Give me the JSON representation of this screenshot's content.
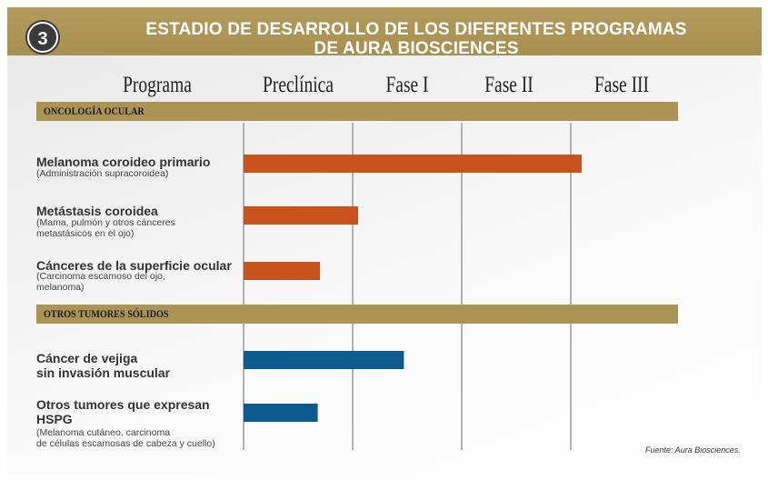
{
  "header": {
    "badge": "3",
    "title_line1": "ESTADIO DE DESARROLLO DE LOS DIFERENTES PROGRAMAS",
    "title_line2": "DE AURA BIOSCIENCES"
  },
  "columns": [
    "Programa",
    "Preclínica",
    "Fase I",
    "Fase II",
    "Fase III"
  ],
  "sections": [
    {
      "label": "ONCOLOGÍA OCULAR"
    },
    {
      "label": "OTROS TUMORES SÓLIDOS"
    }
  ],
  "rows": [
    {
      "title": "Melanoma coroideo primario",
      "title2": "",
      "sub": "(Administración supracoroidea)",
      "sub2": ""
    },
    {
      "title": "Metástasis coroidea",
      "title2": "",
      "sub": "(Mama, pulmón y otros cánceres",
      "sub2": "metastásicos en el ojo)"
    },
    {
      "title": "Cánceres de la superficie ocular",
      "title2": "",
      "sub": "(Carcinoma escamoso del ojo,",
      "sub2": "melanoma)"
    },
    {
      "title": "Cáncer de vejiga",
      "title2": "sin invasión muscular",
      "sub": "",
      "sub2": ""
    },
    {
      "title": "Otros tumores que expresan",
      "title2": "HSPG",
      "sub": "(Melanoma cutáneo, carcinoma",
      "sub2": "de células escamosas de cabeza y cuello)"
    }
  ],
  "source": "Fuente: Aura Biosciences.",
  "chart_data": {
    "type": "bar",
    "orientation": "horizontal",
    "categories": [
      "Melanoma coroideo primario",
      "Metástasis coroidea",
      "Cánceres de la superficie ocular",
      "Cáncer de vejiga sin invasión muscular",
      "Otros tumores que expresan HSPG"
    ],
    "values": [
      3.1,
      1.05,
      0.7,
      1.47,
      0.68
    ],
    "xlim": [
      0,
      4
    ],
    "phase_ticks": [
      "Preclínica",
      "Fase I",
      "Fase II",
      "Fase III"
    ],
    "grid": true,
    "colors": [
      "#c9531d",
      "#c9531d",
      "#c9531d",
      "#0d5a8f",
      "#0d5a8f"
    ]
  }
}
